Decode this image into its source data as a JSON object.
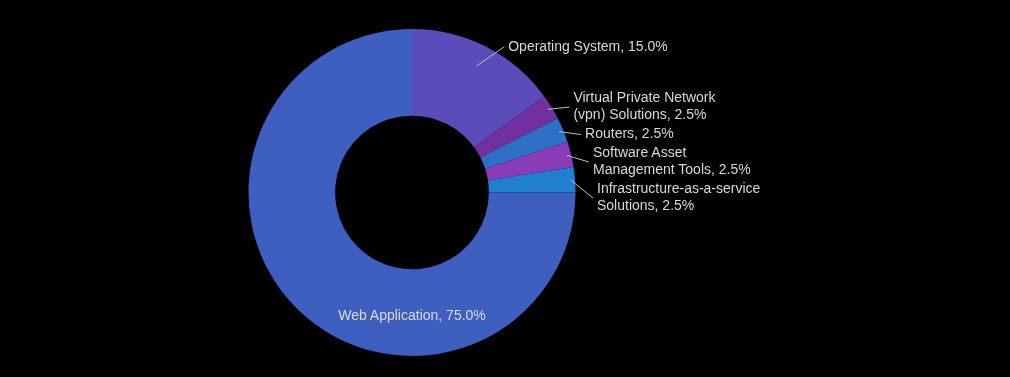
{
  "chart_data": {
    "type": "donut",
    "categories": [
      "Operating System",
      "Virtual Private Network (vpn) Solutions",
      "Routers",
      "Software Asset Management Tools",
      "Infrastructure-as-a-service Solutions",
      "Web Application"
    ],
    "values": [
      15.0,
      2.5,
      2.5,
      2.5,
      2.5,
      75.0
    ],
    "value_labels": [
      "15.0%",
      "2.5%",
      "2.5%",
      "2.5%",
      "2.5%",
      "75.0%"
    ],
    "colors": [
      "#5a4db9",
      "#7030a0",
      "#2f6fc6",
      "#8a3cb8",
      "#1f80d0",
      "#3f5fc0"
    ],
    "legend": false
  }
}
